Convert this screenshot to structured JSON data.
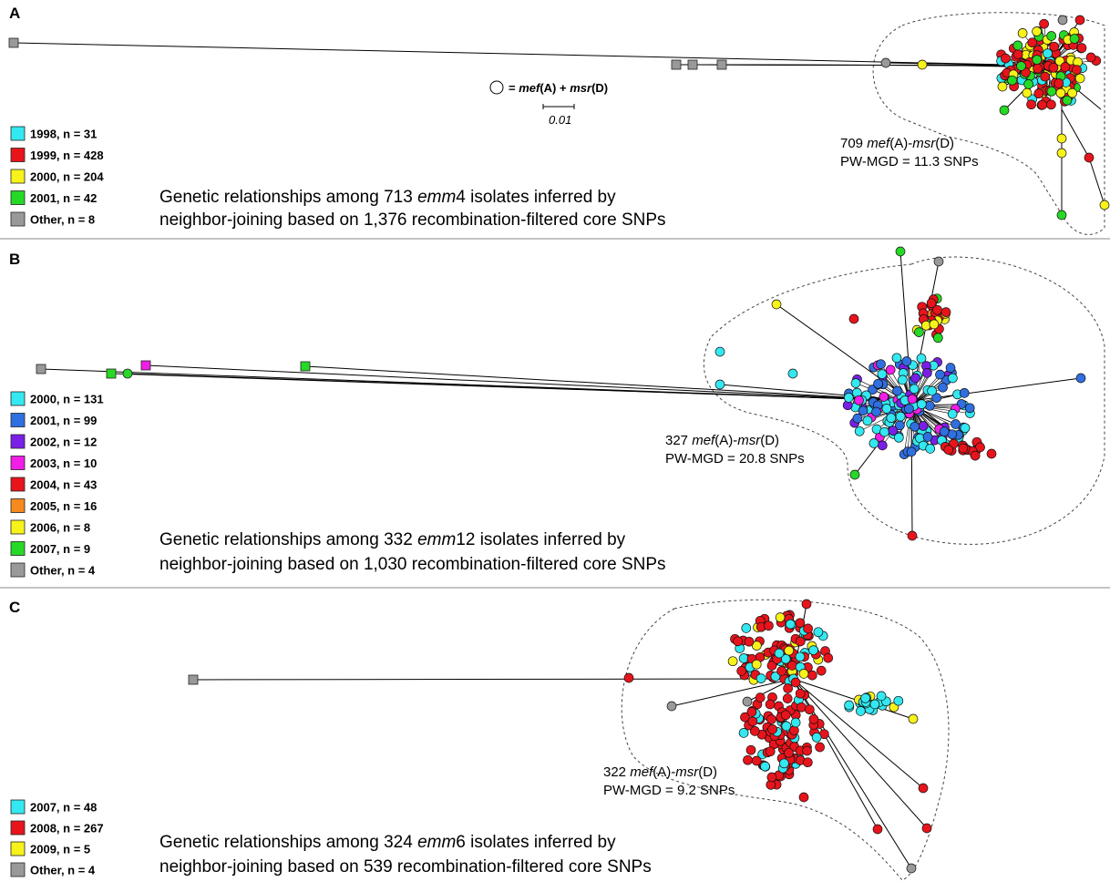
{
  "figure": {
    "scale_bar_label": "0.01",
    "circle_key": {
      "equals": "=",
      "gene1": "mef",
      "gene1_suffix": "(A)",
      "plus": "+",
      "gene2": "msr",
      "gene2_suffix": "(D)"
    }
  },
  "panels": [
    {
      "label": "A",
      "legend": [
        {
          "text": "1998, n = 31",
          "color": "#33e8f0"
        },
        {
          "text": "1999, n = 428",
          "color": "#e8141c"
        },
        {
          "text": "2000, n = 204",
          "color": "#f7f21a"
        },
        {
          "text": "2001, n = 42",
          "color": "#26d926"
        },
        {
          "text": "Other, n = 8",
          "color": "#999999"
        }
      ],
      "caption": {
        "line1_pre": "Genetic relationships among 713 ",
        "line1_em": "emm",
        "line1_post": "4 isolates inferred by",
        "line2": "neighbor-joining based on 1,376 recombination-filtered core SNPs"
      },
      "cluster": {
        "count": "709",
        "gene1": "mef",
        "gene1_suffix": "(A)-",
        "gene2": "msr",
        "gene2_suffix": "(D)",
        "pwmgd": "PW-MGD = 11.3 SNPs"
      }
    },
    {
      "label": "B",
      "legend": [
        {
          "text": "2000, n = 131",
          "color": "#33e8f0"
        },
        {
          "text": "2001, n = 99",
          "color": "#2f6fe0"
        },
        {
          "text": "2002, n = 12",
          "color": "#7a1fe6"
        },
        {
          "text": "2003, n = 10",
          "color": "#f01ee6"
        },
        {
          "text": "2004, n = 43",
          "color": "#e8141c"
        },
        {
          "text": "2005, n = 16",
          "color": "#f58a1f"
        },
        {
          "text": "2006, n = 8",
          "color": "#f7f21a"
        },
        {
          "text": "2007, n = 9",
          "color": "#26d926"
        },
        {
          "text": "Other, n = 4",
          "color": "#999999"
        }
      ],
      "caption": {
        "line1_pre": "Genetic relationships among 332 ",
        "line1_em": "emm",
        "line1_post": "12 isolates inferred by",
        "line2": "neighbor-joining based on 1,030 recombination-filtered core SNPs"
      },
      "cluster": {
        "count": "327",
        "gene1": "mef",
        "gene1_suffix": "(A)-",
        "gene2": "msr",
        "gene2_suffix": "(D)",
        "pwmgd": "PW-MGD = 20.8 SNPs"
      }
    },
    {
      "label": "C",
      "legend": [
        {
          "text": "2007, n = 48",
          "color": "#33e8f0"
        },
        {
          "text": "2008, n = 267",
          "color": "#e8141c"
        },
        {
          "text": "2009, n = 5",
          "color": "#f7f21a"
        },
        {
          "text": "Other, n = 4",
          "color": "#999999"
        }
      ],
      "caption": {
        "line1_pre": "Genetic relationships among 324 ",
        "line1_em": "emm",
        "line1_post": "6 isolates inferred by",
        "line2": "neighbor-joining based on 539 recombination-filtered core SNPs"
      },
      "cluster": {
        "count": "322",
        "gene1": "mef",
        "gene1_suffix": "(A)-",
        "gene2": "msr",
        "gene2_suffix": "(D)",
        "pwmgd": "PW-MGD = 9.2 SNPs"
      }
    }
  ]
}
